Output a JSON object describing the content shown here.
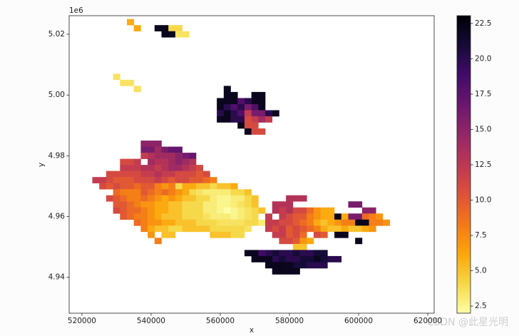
{
  "chart_data": {
    "type": "heatmap",
    "xlabel": "x",
    "ylabel": "y",
    "y_offset": "1e6",
    "watermark": "CSDN @此星光明",
    "colormap": "inferno_r",
    "clim": [
      2,
      23.05
    ],
    "cticks": [
      2.5,
      5.0,
      7.5,
      10.0,
      12.5,
      15.0,
      17.5,
      20.0,
      22.5
    ],
    "xlim": [
      516300,
      621850
    ],
    "ylim": [
      4928200,
      5026100
    ],
    "xticks": [
      520000,
      540000,
      560000,
      580000,
      600000,
      620000
    ],
    "yticks": [
      {
        "value": 4940000,
        "label": "4.94"
      },
      {
        "value": 4960000,
        "label": "4.96"
      },
      {
        "value": 4980000,
        "label": "4.98"
      },
      {
        "value": 5000000,
        "label": "5.00"
      },
      {
        "value": 5020000,
        "label": "5.02"
      }
    ],
    "cell_size": 2000,
    "rows": [
      {
        "y": 5024000,
        "x0": 534000,
        "values": [
          6
        ]
      },
      {
        "y": 5022000,
        "x0": 536000,
        "values": [
          6,
          null,
          null,
          22,
          22,
          4,
          4
        ]
      },
      {
        "y": 5020000,
        "x0": 544000,
        "values": [
          22,
          22,
          3.5,
          3.5
        ]
      },
      {
        "y": 5006000,
        "x0": 530000,
        "values": [
          3.5
        ]
      },
      {
        "y": 5004000,
        "x0": 532000,
        "values": [
          3.5,
          3.5
        ]
      },
      {
        "y": 5002000,
        "x0": 536000,
        "values": [
          3.5,
          null,
          null,
          null,
          null,
          null,
          null,
          null,
          null,
          null,
          null,
          null,
          null,
          22
        ]
      },
      {
        "y": 5000000,
        "x0": 562000,
        "values": [
          22,
          22,
          null,
          null,
          22,
          22
        ]
      },
      {
        "y": 4998000,
        "x0": 560000,
        "values": [
          22,
          22,
          22,
          18,
          20,
          22,
          22
        ]
      },
      {
        "y": 4996000,
        "x0": 560000,
        "values": [
          22,
          20,
          18,
          20,
          16,
          18,
          22
        ]
      },
      {
        "y": 4994000,
        "x0": 560000,
        "values": [
          20,
          22,
          20,
          18,
          12,
          16,
          16,
          20,
          22
        ]
      },
      {
        "y": 4992000,
        "x0": 560000,
        "values": [
          22,
          22,
          20,
          20,
          11,
          12,
          14,
          12
        ]
      },
      {
        "y": 4990000,
        "x0": 566000,
        "values": [
          22,
          11,
          11
        ]
      },
      {
        "y": 4988000,
        "x0": 568000,
        "values": [
          22,
          11,
          11
        ]
      },
      {
        "y": 4984000,
        "x0": 538000,
        "values": [
          15,
          15,
          15
        ]
      },
      {
        "y": 4982000,
        "x0": 538000,
        "values": [
          16,
          16,
          14,
          16,
          17,
          17
        ]
      },
      {
        "y": 4980000,
        "x0": 538000,
        "values": [
          12,
          13,
          14,
          14,
          14,
          15,
          16,
          17
        ]
      },
      {
        "y": 4978000,
        "x0": 532000,
        "values": [
          11,
          11,
          12,
          null,
          14,
          13,
          13,
          14,
          15,
          14,
          13
        ]
      },
      {
        "y": 4976000,
        "x0": 532000,
        "values": [
          12,
          12,
          12,
          13,
          13,
          12,
          13,
          14,
          14,
          13,
          12,
          11
        ]
      },
      {
        "y": 4974000,
        "x0": 528000,
        "values": [
          11,
          11,
          11,
          11,
          11,
          12,
          12,
          13,
          12,
          12,
          11,
          11,
          11,
          10,
          11
        ]
      },
      {
        "y": 4972000,
        "x0": 524000,
        "values": [
          12,
          12,
          11,
          10,
          10,
          10,
          11,
          11,
          11,
          12,
          11,
          10,
          11,
          11,
          10,
          10,
          9,
          8
        ]
      },
      {
        "y": 4970000,
        "x0": 526000,
        "values": [
          11,
          10,
          11,
          10,
          10,
          9,
          10,
          10,
          8,
          7,
          8,
          4,
          6,
          6,
          5,
          5,
          4,
          5,
          5,
          6
        ]
      },
      {
        "y": 4968000,
        "x0": 530000,
        "values": [
          9,
          8,
          8,
          8,
          10,
          9,
          8,
          9,
          8,
          7,
          6,
          4,
          3.5,
          3,
          3,
          3,
          3,
          4,
          4,
          5
        ]
      },
      {
        "y": 4966000,
        "x0": 528000,
        "values": [
          11,
          10,
          9,
          8,
          8,
          9,
          8,
          7,
          6,
          7,
          6,
          5,
          5,
          4,
          4,
          3,
          2.5,
          2.5,
          3,
          3,
          4,
          5,
          null,
          null,
          null,
          null,
          13,
          13,
          13
        ]
      },
      {
        "y": 4964000,
        "x0": 530000,
        "values": [
          10,
          10,
          9,
          8,
          7,
          7,
          6,
          6,
          5,
          5,
          4,
          4,
          4,
          3,
          3,
          2.5,
          2.5,
          3,
          3.5,
          4,
          5,
          null,
          null,
          13,
          13,
          13,
          null,
          null,
          null,
          null,
          null,
          null,
          null,
          null,
          16,
          16
        ]
      },
      {
        "y": 4962000,
        "x0": 530000,
        "values": [
          11,
          10,
          9,
          9,
          8,
          7,
          6,
          6,
          5,
          5,
          4,
          4,
          4,
          3,
          3,
          2.5,
          2,
          2.5,
          3,
          3.5,
          4,
          5,
          null,
          13,
          12,
          13,
          11,
          11,
          9,
          7,
          6,
          6,
          null,
          null,
          null,
          null,
          15,
          15
        ]
      },
      {
        "y": 4960000,
        "x0": 532000,
        "values": [
          10,
          9,
          8,
          8,
          7,
          6,
          5,
          5,
          5,
          4,
          4,
          4,
          3.5,
          3,
          3,
          3,
          2.5,
          3,
          3.5,
          4,
          null,
          12,
          null,
          12,
          11,
          10,
          10,
          8,
          7,
          6,
          6,
          22,
          6,
          16,
          16,
          9,
          8,
          7
        ]
      },
      {
        "y": 4958000,
        "x0": 536000,
        "values": [
          9,
          8,
          7,
          7,
          6,
          6,
          5,
          5,
          5,
          4,
          4,
          4,
          3.5,
          3.5,
          3.5,
          3.5,
          4,
          4,
          3,
          12,
          12,
          11,
          11,
          10,
          9,
          8,
          6,
          5,
          6,
          7,
          8,
          8,
          22,
          22,
          8,
          8,
          7
        ]
      },
      {
        "y": 4956000,
        "x0": 538000,
        "values": [
          8,
          6,
          5,
          5,
          4,
          4,
          5,
          5,
          5,
          5,
          4,
          4,
          4,
          4,
          4,
          3.5,
          null,
          null,
          12,
          11,
          12,
          10,
          11,
          10,
          9,
          8,
          6,
          5,
          5,
          6,
          5,
          5,
          6,
          7
        ]
      },
      {
        "y": 4954000,
        "x0": 540000,
        "values": [
          7,
          null,
          5,
          5,
          null,
          null,
          null,
          null,
          null,
          5,
          5,
          5,
          4,
          4,
          null,
          null,
          null,
          null,
          12,
          12,
          10,
          11,
          9,
          null,
          11,
          10,
          null,
          22,
          22
        ]
      },
      {
        "y": 4952000,
        "x0": 542000,
        "values": [
          8,
          null,
          null,
          null,
          null,
          null,
          null,
          null,
          null,
          null,
          null,
          null,
          null,
          null,
          null,
          null,
          null,
          null,
          11,
          11,
          10,
          7,
          6,
          null,
          null,
          null,
          null,
          null,
          null,
          22
        ]
      },
      {
        "y": 4950000,
        "x0": 582000,
        "values": [
          5,
          5
        ]
      },
      {
        "y": 4948000,
        "x0": 568000,
        "values": [
          22,
          22,
          19,
          20,
          21,
          20,
          20,
          21,
          20,
          20,
          21,
          21
        ]
      },
      {
        "y": 4946000,
        "x0": 570000,
        "values": [
          22,
          22,
          22,
          20,
          21,
          20,
          20,
          21,
          21,
          22,
          21,
          20,
          20
        ]
      },
      {
        "y": 4944000,
        "x0": 574000,
        "values": [
          22,
          22,
          22,
          22,
          21,
          21,
          20,
          20,
          20
        ]
      },
      {
        "y": 4942000,
        "x0": 576000,
        "values": [
          22,
          22,
          22,
          22
        ]
      }
    ]
  }
}
